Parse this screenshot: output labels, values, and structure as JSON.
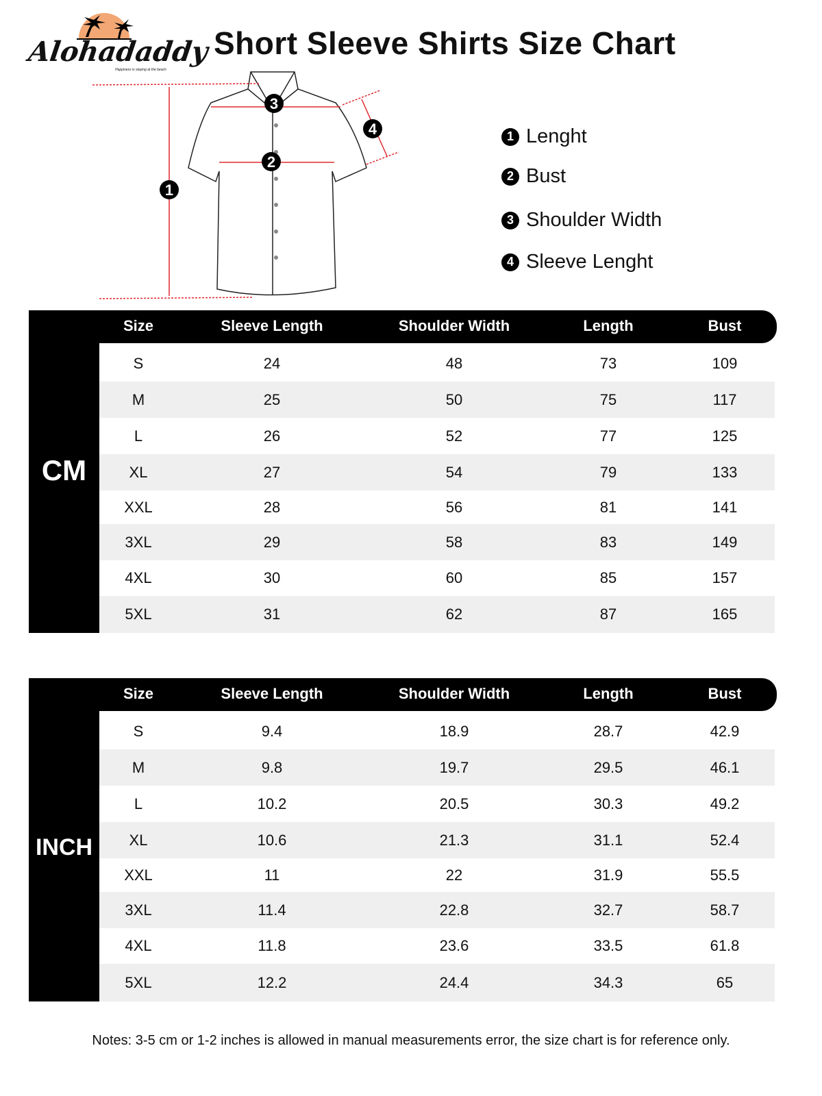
{
  "logo": {
    "name": "Alohadaddy",
    "tagline": "Happiness is staying at the beach",
    "sun_color": "#f2a774"
  },
  "title": "Short Sleeve Shirts Size Chart",
  "diagram": {
    "markers": [
      "1",
      "2",
      "3",
      "4"
    ],
    "arrow_color": "#e0282e"
  },
  "legend": [
    {
      "num": "1",
      "label": "Lenght"
    },
    {
      "num": "2",
      "label": "Bust"
    },
    {
      "num": "3",
      "label": "Shoulder Width"
    },
    {
      "num": "4",
      "label": "Sleeve Lenght"
    }
  ],
  "columns": [
    "Size",
    "Sleeve Length",
    "Shoulder Width",
    "Length",
    "Bust"
  ],
  "tables": [
    {
      "unit": "CM",
      "rows": [
        [
          "S",
          "24",
          "48",
          "73",
          "109"
        ],
        [
          "M",
          "25",
          "50",
          "75",
          "117"
        ],
        [
          "L",
          "26",
          "52",
          "77",
          "125"
        ],
        [
          "XL",
          "27",
          "54",
          "79",
          "133"
        ],
        [
          "XXL",
          "28",
          "56",
          "81",
          "141"
        ],
        [
          "3XL",
          "29",
          "58",
          "83",
          "149"
        ],
        [
          "4XL",
          "30",
          "60",
          "85",
          "157"
        ],
        [
          "5XL",
          "31",
          "62",
          "87",
          "165"
        ]
      ]
    },
    {
      "unit": "INCH",
      "rows": [
        [
          "S",
          "9.4",
          "18.9",
          "28.7",
          "42.9"
        ],
        [
          "M",
          "9.8",
          "19.7",
          "29.5",
          "46.1"
        ],
        [
          "L",
          "10.2",
          "20.5",
          "30.3",
          "49.2"
        ],
        [
          "XL",
          "10.6",
          "21.3",
          "31.1",
          "52.4"
        ],
        [
          "XXL",
          "11",
          "22",
          "31.9",
          "55.5"
        ],
        [
          "3XL",
          "11.4",
          "22.8",
          "32.7",
          "58.7"
        ],
        [
          "4XL",
          "11.8",
          "23.6",
          "33.5",
          "61.8"
        ],
        [
          "5XL",
          "12.2",
          "24.4",
          "34.3",
          "65"
        ]
      ]
    }
  ],
  "notes": "Notes: 3-5 cm or 1-2 inches is allowed in manual measurements error, the size chart is for reference only."
}
